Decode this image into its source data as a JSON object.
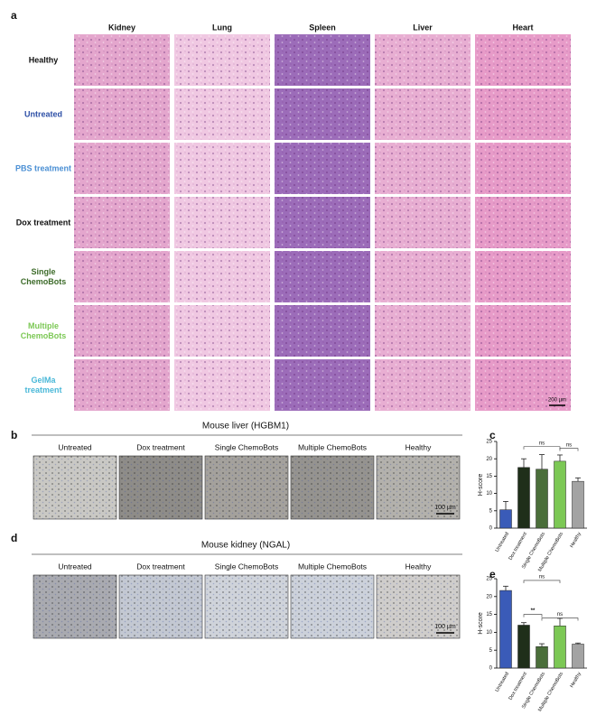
{
  "panel_labels": [
    "a",
    "b",
    "c",
    "d",
    "e"
  ],
  "panel_a": {
    "columns": [
      "Kidney",
      "Lung",
      "Spleen",
      "Liver",
      "Heart"
    ],
    "column_colors": [
      "#e4a6cd",
      "#f0c8e2",
      "#9c6cb9",
      "#e8aed2",
      "#e79bc8"
    ],
    "rows": [
      {
        "label": "Healthy",
        "color": "#111111"
      },
      {
        "label": "Untreated",
        "color": "#2d4fa6"
      },
      {
        "label": "PBS treatment",
        "color": "#4a8fd4"
      },
      {
        "label": "Dox treatment",
        "color": "#111111"
      },
      {
        "label": "Single ChemoBots",
        "color": "#3d6b2a"
      },
      {
        "label": "Multiple ChemoBots",
        "color": "#7cc855"
      },
      {
        "label": "GelMa treatment",
        "color": "#4ab8d8"
      }
    ],
    "scale_bar": "200 µm"
  },
  "panel_b": {
    "title": "Mouse liver (HGBM1)",
    "groups": [
      "Untreated",
      "Dox treatment",
      "Single ChemoBots",
      "Multiple ChemoBots",
      "Healthy"
    ],
    "group_colors": [
      "#2d4fa6",
      "#222222",
      "#3d6b2a",
      "#7cc855",
      "#999999"
    ],
    "image_colors": [
      "#c9c8c4",
      "#8e8c88",
      "#a4a19c",
      "#95938f",
      "#b3b1ac"
    ],
    "scale_bar": "100 µm"
  },
  "panel_d": {
    "title": "Mouse kidney (NGAL)",
    "groups": [
      "Untreated",
      "Dox treatment",
      "Single ChemoBots",
      "Multiple ChemoBots",
      "Healthy"
    ],
    "group_colors": [
      "#2d4fa6",
      "#222222",
      "#3d6b2a",
      "#7cc855",
      "#999999"
    ],
    "image_colors": [
      "#a9aab0",
      "#c3c8d2",
      "#cfd3da",
      "#ccd1da",
      "#cfcdcb"
    ],
    "scale_bar": "100 µm"
  },
  "chart_data": [
    {
      "type": "bar",
      "ylabel": "H-score",
      "categories": [
        "Untreated",
        "Dox treatment",
        "Single ChemoBots",
        "Multiple ChemoBots",
        "Healthy"
      ],
      "values": [
        5.3,
        17.5,
        17,
        19.3,
        13.5
      ],
      "errors": [
        2.4,
        2.5,
        4.2,
        1.8,
        1
      ],
      "colors": [
        "#3a5bb8",
        "#1f2f1a",
        "#4a6e3a",
        "#7cc855",
        "#a3a3a3"
      ],
      "ylim": [
        0,
        25
      ],
      "yticks": [
        0,
        5,
        10,
        15,
        20,
        25
      ],
      "annotations": [
        "ns",
        "ns"
      ]
    },
    {
      "type": "bar",
      "ylabel": "H-score",
      "categories": [
        "Untreated",
        "Dox treatment",
        "Single ChemoBots",
        "Multiple ChemoBots",
        "Healthy"
      ],
      "values": [
        21.7,
        12,
        6,
        11.8,
        6.7
      ],
      "errors": [
        1.2,
        0.7,
        0.8,
        2.1,
        0.3
      ],
      "colors": [
        "#3a5bb8",
        "#1f2f1a",
        "#4a6e3a",
        "#7cc855",
        "#a3a3a3"
      ],
      "ylim": [
        0,
        25
      ],
      "yticks": [
        0,
        5,
        10,
        15,
        20,
        25
      ],
      "annotations": [
        "ns",
        "**",
        "ns"
      ]
    }
  ]
}
